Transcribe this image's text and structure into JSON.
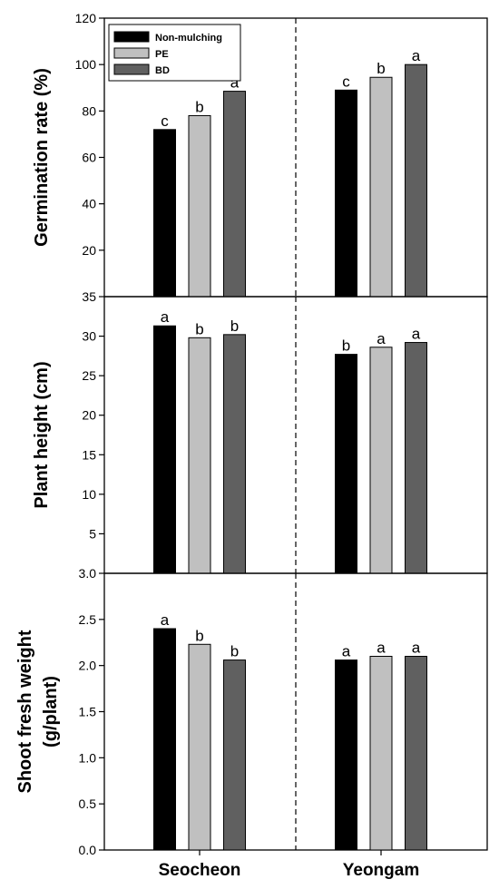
{
  "colors": {
    "Non-mulching": "#000000",
    "PE": "#c0c0c0",
    "BD": "#606060"
  },
  "legend": [
    "Non-mulching",
    "PE",
    "BD"
  ],
  "x_categories": [
    "Seocheon",
    "Yeongam"
  ],
  "chart_data": [
    {
      "type": "bar",
      "ylabel": [
        "Germination rate (%)"
      ],
      "ylim": [
        0,
        120
      ],
      "yticks": [
        20,
        40,
        60,
        80,
        100,
        120
      ],
      "ytick_labels": [
        "20",
        "40",
        "60",
        "80",
        "100",
        "120"
      ],
      "categories": [
        "Seocheon",
        "Yeongam"
      ],
      "series": [
        {
          "name": "Non-mulching",
          "values": [
            72,
            89
          ],
          "labels": [
            "c",
            "c"
          ]
        },
        {
          "name": "PE",
          "values": [
            78,
            94.5
          ],
          "labels": [
            "b",
            "b"
          ]
        },
        {
          "name": "BD",
          "values": [
            88.5,
            100
          ],
          "labels": [
            "a",
            "a"
          ]
        }
      ]
    },
    {
      "type": "bar",
      "ylabel": [
        "Plant height (cm)"
      ],
      "ylim": [
        0,
        35
      ],
      "yticks": [
        5,
        10,
        15,
        20,
        25,
        30,
        35
      ],
      "ytick_labels": [
        "5",
        "10",
        "15",
        "20",
        "25",
        "30",
        "35"
      ],
      "categories": [
        "Seocheon",
        "Yeongam"
      ],
      "series": [
        {
          "name": "Non-mulching",
          "values": [
            31.3,
            27.7
          ],
          "labels": [
            "a",
            "b"
          ]
        },
        {
          "name": "PE",
          "values": [
            29.8,
            28.6
          ],
          "labels": [
            "b",
            "a"
          ]
        },
        {
          "name": "BD",
          "values": [
            30.2,
            29.2
          ],
          "labels": [
            "b",
            "a"
          ]
        }
      ]
    },
    {
      "type": "bar",
      "ylabel": [
        "Shoot fresh weight",
        "(g/plant)"
      ],
      "ylim": [
        0,
        3.0
      ],
      "yticks": [
        0,
        0.5,
        1.0,
        1.5,
        2.0,
        2.5,
        3.0
      ],
      "ytick_labels": [
        "0.0",
        "0.5",
        "1.0",
        "1.5",
        "2.0",
        "2.5",
        "3.0"
      ],
      "categories": [
        "Seocheon",
        "Yeongam"
      ],
      "series": [
        {
          "name": "Non-mulching",
          "values": [
            2.4,
            2.06
          ],
          "labels": [
            "a",
            "a"
          ]
        },
        {
          "name": "PE",
          "values": [
            2.23,
            2.1
          ],
          "labels": [
            "b",
            "a"
          ]
        },
        {
          "name": "BD",
          "values": [
            2.06,
            2.1
          ],
          "labels": [
            "b",
            "a"
          ]
        }
      ]
    }
  ]
}
